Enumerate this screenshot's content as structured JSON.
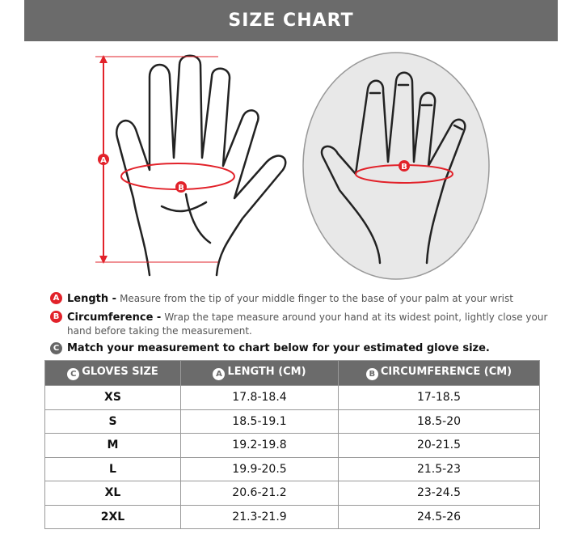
{
  "title": "SIZE CHART",
  "illustration": {
    "marker_a": "A",
    "marker_b": "B"
  },
  "notes": [
    {
      "badge": "A",
      "label": "Length -",
      "text": "Measure from the tip of your middle finger to the base of your palm at your wrist",
      "color": "red"
    },
    {
      "badge": "B",
      "label": "Circumference  -",
      "text": "Wrap the tape measure around your hand at its widest point, lightly close your hand before taking the measurement.",
      "color": "red"
    },
    {
      "badge": "C",
      "label": "Match your measurement to chart below for your estimated glove size.",
      "text": "",
      "color": "gray"
    }
  ],
  "table": {
    "headers": [
      {
        "badge": "C",
        "label": "GLOVES SIZE"
      },
      {
        "badge": "A",
        "label": "LENGTH (CM)"
      },
      {
        "badge": "B",
        "label": "CIRCUMFERENCE (CM)"
      }
    ],
    "rows": [
      [
        "XS",
        "17.8-18.4",
        "17-18.5"
      ],
      [
        "S",
        "18.5-19.1",
        "18.5-20"
      ],
      [
        "M",
        "19.2-19.8",
        "20-21.5"
      ],
      [
        "L",
        "19.9-20.5",
        "21.5-23"
      ],
      [
        "XL",
        "20.6-21.2",
        "23-24.5"
      ],
      [
        "2XL",
        "21.3-21.9",
        "24.5-26"
      ]
    ]
  },
  "colors": {
    "accent": "#e2222a",
    "header": "#6b6b6b"
  }
}
